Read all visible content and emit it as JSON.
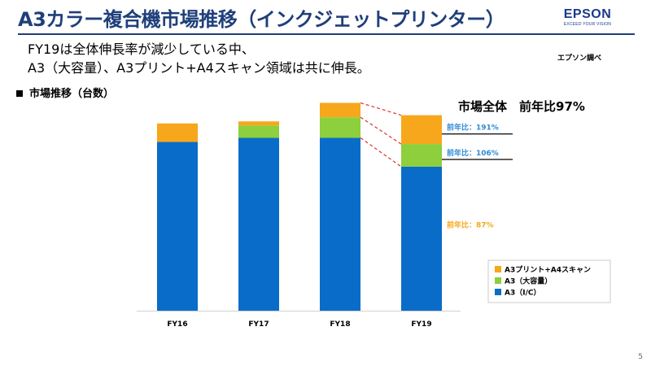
{
  "slide": {
    "title": "A3カラー複合機市場推移（インクジェットプリンター）",
    "logo": {
      "name": "EPSON",
      "tagline": "EXCEED YOUR VISION"
    },
    "subtitle_lines": [
      "FY19は全体伸長率が減少している中、",
      "A3（大容量）、A3プリント+A4スキャン領域は共に伸長。"
    ],
    "source": "エプソン調べ",
    "section_label": "市場推移（台数）",
    "market_total": "市場全体　前年比97%",
    "page_number": "5"
  },
  "chart_data": {
    "type": "bar",
    "stacked": true,
    "title": "市場推移（台数）",
    "categories": [
      "FY16",
      "FY17",
      "FY18",
      "FY19"
    ],
    "series": [
      {
        "name": "A3（I/C）",
        "color": "#0a6cc9",
        "values": [
          82,
          84,
          84,
          70
        ]
      },
      {
        "name": "A3（大容量）",
        "color": "#8dcf3c",
        "values": [
          0,
          6,
          10,
          11
        ]
      },
      {
        "name": "A3プリント+A4スキャン",
        "color": "#f6a71c",
        "values": [
          9,
          2,
          7,
          14
        ]
      }
    ],
    "ylim": [
      0,
      100
    ],
    "xlabel": "",
    "ylabel": "",
    "grid": false,
    "legend_position": "bottom-right",
    "legend_order": [
      "A3プリント+A4スキャン",
      "A3（大容量）",
      "A3（I/C）"
    ],
    "annotations": [
      {
        "series": "A3プリント+A4スキャン",
        "text": "前年比：191%",
        "color": "#2e8bd6"
      },
      {
        "series": "A3（大容量）",
        "text": "前年比：106%",
        "color": "#2e8bd6"
      },
      {
        "series": "A3（I/C）",
        "text": "前年比：87%",
        "color": "#f6a71c"
      }
    ],
    "connector_color": "#e03030"
  }
}
